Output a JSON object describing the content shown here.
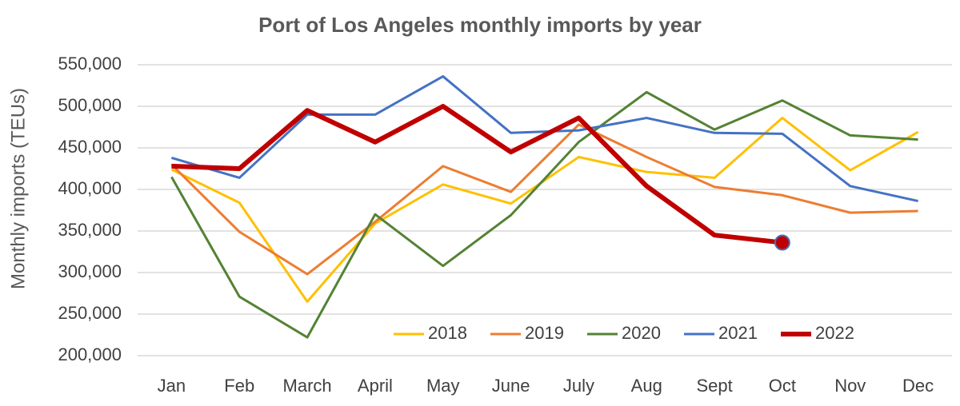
{
  "chart_data": {
    "type": "line",
    "title": "Port of Los Angeles monthly imports by year",
    "y_label": "Monthly imports (TEUs)",
    "categories": [
      "Jan",
      "Feb",
      "March",
      "April",
      "May",
      "June",
      "July",
      "Aug",
      "Sept",
      "Oct",
      "Nov",
      "Dec"
    ],
    "series": [
      {
        "name": "2018",
        "color": "#ffc000",
        "line_width": 3,
        "values": [
          424000,
          384000,
          265000,
          359000,
          406000,
          383000,
          439000,
          421000,
          414000,
          486000,
          423000,
          469000
        ]
      },
      {
        "name": "2019",
        "color": "#ed7d31",
        "line_width": 3,
        "values": [
          430000,
          349000,
          298000,
          361000,
          428000,
          397000,
          478000,
          439000,
          403000,
          393000,
          372000,
          374000
        ]
      },
      {
        "name": "2020",
        "color": "#548235",
        "line_width": 3,
        "values": [
          415000,
          271000,
          222000,
          370000,
          308000,
          369000,
          457000,
          517000,
          472000,
          507000,
          465000,
          460000
        ]
      },
      {
        "name": "2021",
        "color": "#4472c4",
        "line_width": 3,
        "values": [
          438000,
          414000,
          490000,
          490000,
          536000,
          468000,
          471000,
          486000,
          468000,
          467000,
          404000,
          386000
        ]
      },
      {
        "name": "2022",
        "color": "#c00000",
        "line_width": 6,
        "end_marker": true,
        "values": [
          428000,
          425000,
          495000,
          457000,
          500000,
          445000,
          486000,
          404000,
          345000,
          336000,
          null,
          null
        ]
      }
    ],
    "ylim": [
      200000,
      550000
    ],
    "yticks": [
      {
        "value": 200000,
        "label": "200,000"
      },
      {
        "value": 250000,
        "label": "250,000"
      },
      {
        "value": 300000,
        "label": "300,000"
      },
      {
        "value": 350000,
        "label": "350,000"
      },
      {
        "value": 400000,
        "label": "400,000"
      },
      {
        "value": 450000,
        "label": "450,000"
      },
      {
        "value": 500000,
        "label": "500,000"
      },
      {
        "value": 550000,
        "label": "550,000"
      }
    ],
    "grid": true,
    "legend": "bottom"
  }
}
